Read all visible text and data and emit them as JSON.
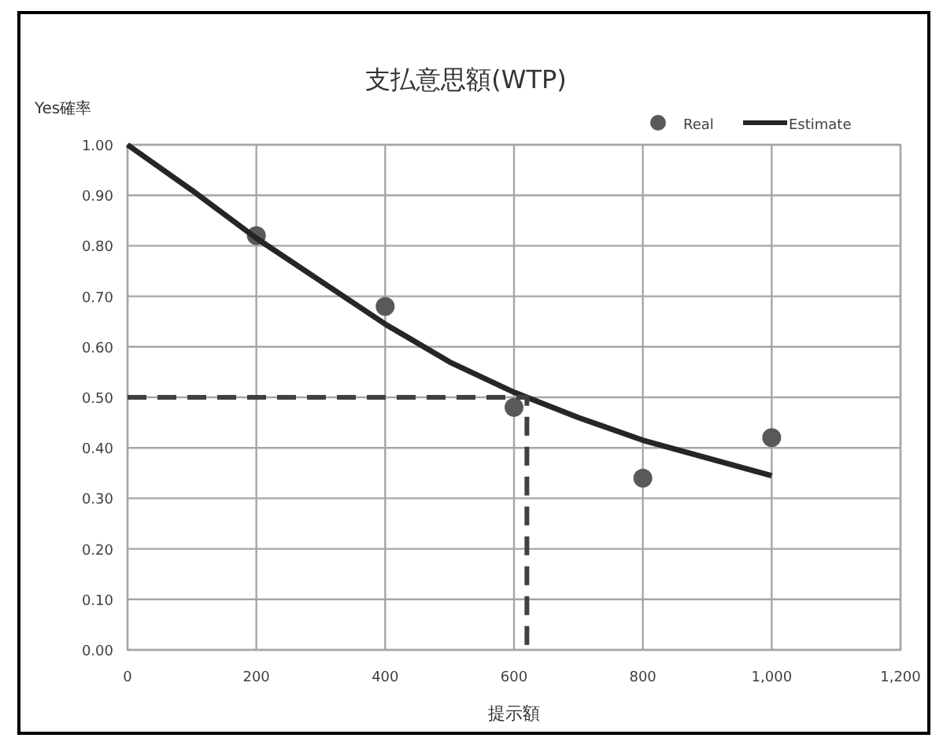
{
  "chart_data": {
    "type": "scatter",
    "title": "支払意思額(WTP)",
    "xlabel": "提示額",
    "ylabel": "Yes確率",
    "xlim": [
      0,
      1200
    ],
    "ylim": [
      0,
      1
    ],
    "xticks": [
      0,
      200,
      400,
      600,
      800,
      {
        "value": 1000,
        "label": "1,000"
      },
      {
        "value": 1200,
        "label": "1,200"
      }
    ],
    "yticks": [
      {
        "value": 0,
        "label": "0.00"
      },
      {
        "value": 0.1,
        "label": "0.10"
      },
      {
        "value": 0.2,
        "label": "0.20"
      },
      {
        "value": 0.3,
        "label": "0.30"
      },
      {
        "value": 0.4,
        "label": "0.40"
      },
      {
        "value": 0.5,
        "label": "0.50"
      },
      {
        "value": 0.6,
        "label": "0.60"
      },
      {
        "value": 0.7,
        "label": "0.70"
      },
      {
        "value": 0.8,
        "label": "0.80"
      },
      {
        "value": 0.9,
        "label": "0.90"
      },
      {
        "value": 1,
        "label": "1.00"
      }
    ],
    "grid": true,
    "legend": "top right",
    "series": [
      {
        "name": "Real",
        "marker": "circle",
        "color": "#595959",
        "x": [
          200,
          400,
          600,
          800,
          1000
        ],
        "values": [
          0.82,
          0.68,
          0.48,
          0.34,
          0.42
        ]
      },
      {
        "name": "Estimate",
        "type": "line",
        "line_style": "solid",
        "color": "#262626",
        "x": [
          0,
          100,
          200,
          300,
          400,
          500,
          600,
          700,
          800,
          900,
          1000
        ],
        "values": [
          1.0,
          0.91,
          0.815,
          0.73,
          0.645,
          0.57,
          0.51,
          0.46,
          0.415,
          0.38,
          0.345
        ]
      },
      {
        "type": "line",
        "line_style": "dashed",
        "color": "#404040",
        "x": [
          0,
          620,
          620
        ],
        "values": [
          0.5,
          0.5,
          0
        ]
      }
    ]
  }
}
